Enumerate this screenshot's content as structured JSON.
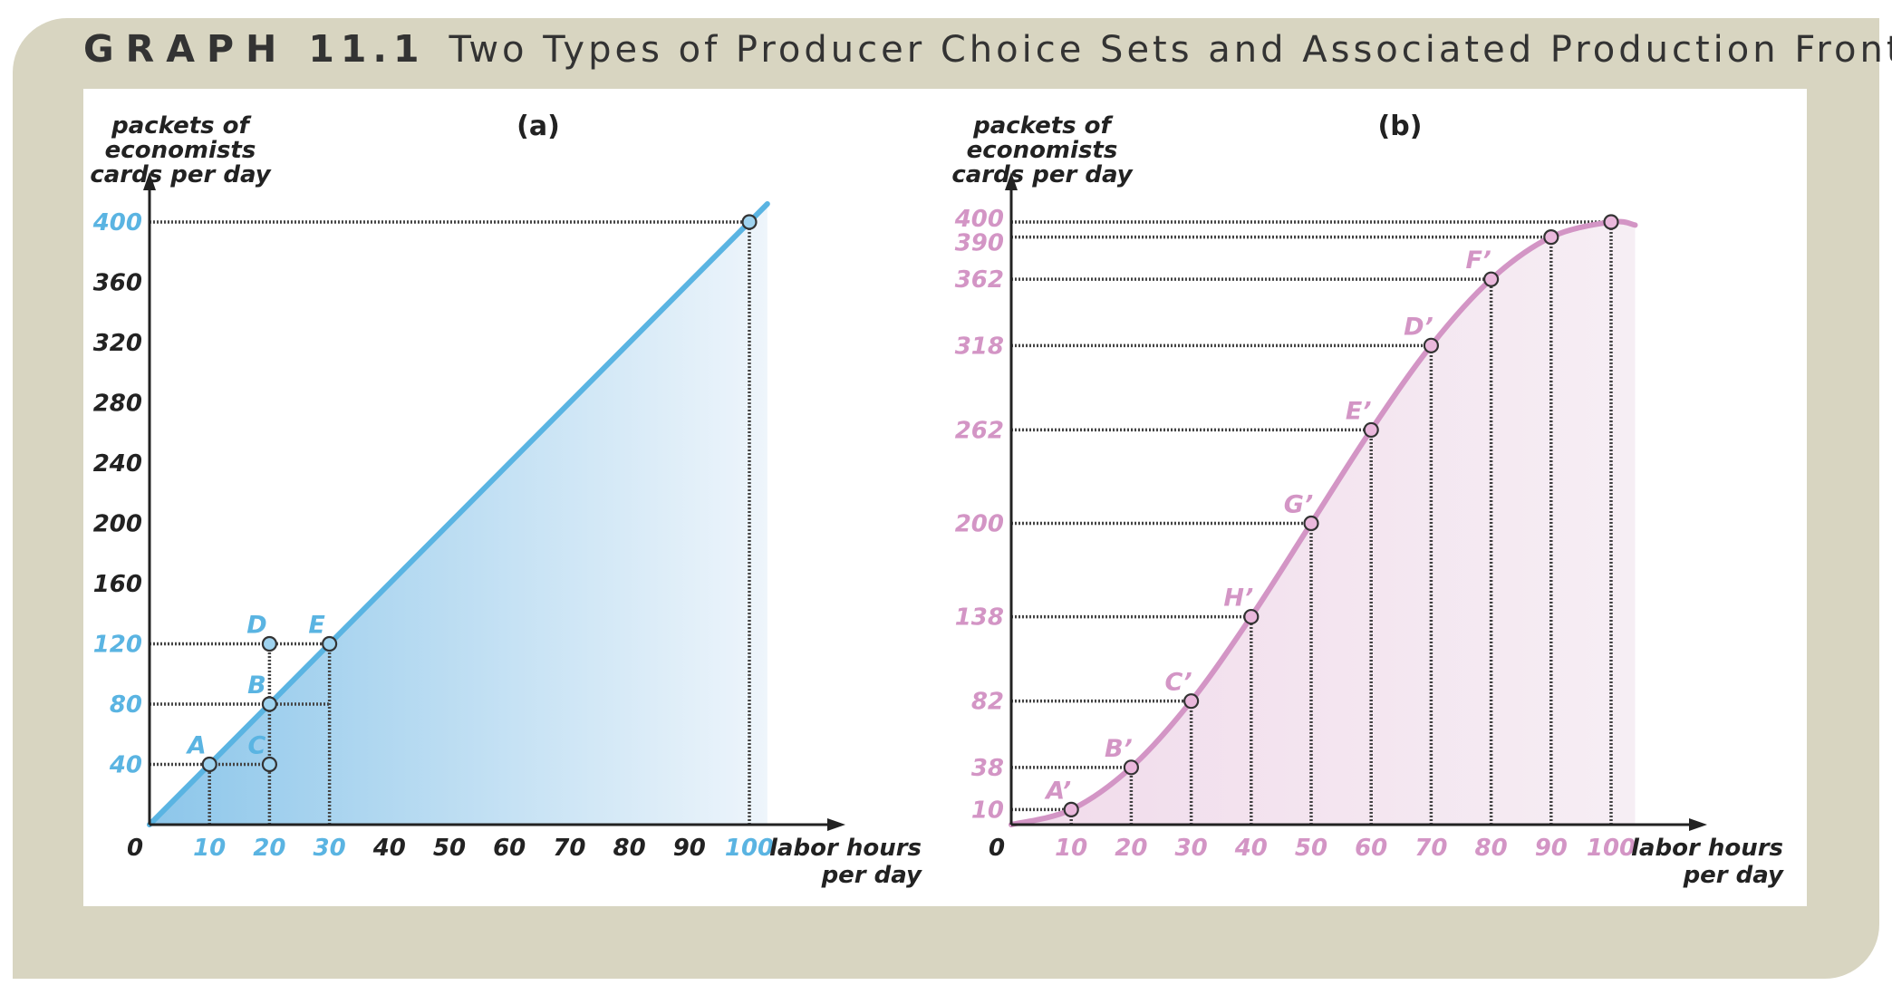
{
  "title": {
    "graph_label": "GRAPH",
    "number": "11.1",
    "text": "Two Types of Producer Choice Sets and Associated Production Frontiers"
  },
  "colors": {
    "blue": "#5ab4e2",
    "pink": "#d395c5",
    "dark": "#222222",
    "frame": "#d8d5c1"
  },
  "chart_data": [
    {
      "type": "area",
      "panel_label": "(a)",
      "ylabel": "packets of economists cards per day",
      "ylabel_lines": [
        "packets of",
        "economists",
        "cards per day"
      ],
      "xlabel": "labor hours per day",
      "xlabel_lines": [
        "labor hours",
        "per day"
      ],
      "xlim": [
        0,
        105
      ],
      "ylim": [
        0,
        420
      ],
      "origin_label": "0",
      "x_ticks": [
        {
          "value": 10,
          "label": "10",
          "highlight": true
        },
        {
          "value": 20,
          "label": "20",
          "highlight": true
        },
        {
          "value": 30,
          "label": "30",
          "highlight": true
        },
        {
          "value": 40,
          "label": "40",
          "highlight": false
        },
        {
          "value": 50,
          "label": "50",
          "highlight": false
        },
        {
          "value": 60,
          "label": "60",
          "highlight": false
        },
        {
          "value": 70,
          "label": "70",
          "highlight": false
        },
        {
          "value": 80,
          "label": "80",
          "highlight": false
        },
        {
          "value": 90,
          "label": "90",
          "highlight": false
        },
        {
          "value": 100,
          "label": "100",
          "highlight": true
        }
      ],
      "y_ticks": [
        {
          "value": 40,
          "label": "40",
          "highlight": true
        },
        {
          "value": 80,
          "label": "80",
          "highlight": true
        },
        {
          "value": 120,
          "label": "120",
          "highlight": true
        },
        {
          "value": 160,
          "label": "160",
          "highlight": false
        },
        {
          "value": 200,
          "label": "200",
          "highlight": false
        },
        {
          "value": 240,
          "label": "240",
          "highlight": false
        },
        {
          "value": 280,
          "label": "280",
          "highlight": false
        },
        {
          "value": 320,
          "label": "320",
          "highlight": false
        },
        {
          "value": 360,
          "label": "360",
          "highlight": false
        },
        {
          "value": 400,
          "label": "400",
          "highlight": true
        }
      ],
      "frontier": {
        "x": [
          0,
          100,
          103
        ],
        "y": [
          0,
          400,
          412
        ]
      },
      "points": [
        {
          "label": "A",
          "x": 10,
          "y": 40,
          "label_pos": "left"
        },
        {
          "label": "B",
          "x": 20,
          "y": 80,
          "label_pos": "left"
        },
        {
          "label": "C",
          "x": 20,
          "y": 40,
          "label_pos": "left"
        },
        {
          "label": "D",
          "x": 20,
          "y": 120,
          "label_pos": "left"
        },
        {
          "label": "E",
          "x": 30,
          "y": 120,
          "label_pos": "left"
        },
        {
          "label": "",
          "x": 100,
          "y": 400,
          "label_pos": "none"
        }
      ],
      "guides": [
        {
          "from": [
            0,
            40
          ],
          "to": [
            20,
            40
          ]
        },
        {
          "from": [
            10,
            0
          ],
          "to": [
            10,
            40
          ]
        },
        {
          "from": [
            0,
            80
          ],
          "to": [
            30,
            80
          ]
        },
        {
          "from": [
            0,
            120
          ],
          "to": [
            30,
            120
          ]
        },
        {
          "from": [
            20,
            0
          ],
          "to": [
            20,
            120
          ]
        },
        {
          "from": [
            30,
            0
          ],
          "to": [
            30,
            120
          ]
        },
        {
          "from": [
            0,
            400
          ],
          "to": [
            100,
            400
          ]
        },
        {
          "from": [
            100,
            0
          ],
          "to": [
            100,
            400
          ]
        }
      ]
    },
    {
      "type": "area",
      "panel_label": "(b)",
      "ylabel": "packets of economists cards per day",
      "ylabel_lines": [
        "packets of",
        "economists",
        "cards per day"
      ],
      "xlabel": "labor hours per day",
      "xlabel_lines": [
        "labor hours",
        "per day"
      ],
      "xlim": [
        0,
        105
      ],
      "ylim": [
        0,
        412
      ],
      "origin_label": "0",
      "x_ticks": [
        {
          "value": 10,
          "label": "10",
          "highlight": true
        },
        {
          "value": 20,
          "label": "20",
          "highlight": true
        },
        {
          "value": 30,
          "label": "30",
          "highlight": true
        },
        {
          "value": 40,
          "label": "40",
          "highlight": true
        },
        {
          "value": 50,
          "label": "50",
          "highlight": true
        },
        {
          "value": 60,
          "label": "60",
          "highlight": true
        },
        {
          "value": 70,
          "label": "70",
          "highlight": true
        },
        {
          "value": 80,
          "label": "80",
          "highlight": true
        },
        {
          "value": 90,
          "label": "90",
          "highlight": true
        },
        {
          "value": 100,
          "label": "100",
          "highlight": true
        }
      ],
      "y_ticks": [
        {
          "value": 10,
          "label": "10",
          "highlight": true
        },
        {
          "value": 38,
          "label": "38",
          "highlight": true
        },
        {
          "value": 82,
          "label": "82",
          "highlight": true
        },
        {
          "value": 138,
          "label": "138",
          "highlight": true
        },
        {
          "value": 200,
          "label": "200",
          "highlight": true
        },
        {
          "value": 262,
          "label": "262",
          "highlight": true
        },
        {
          "value": 318,
          "label": "318",
          "highlight": true
        },
        {
          "value": 362,
          "label": "362",
          "highlight": true
        },
        {
          "value": 390,
          "label": "390",
          "highlight": true
        },
        {
          "value": 400,
          "label": "400",
          "highlight": true
        }
      ],
      "frontier": {
        "x": [
          0,
          10,
          20,
          30,
          40,
          50,
          60,
          70,
          80,
          90,
          100,
          104
        ],
        "y": [
          0,
          10,
          38,
          82,
          138,
          200,
          262,
          318,
          362,
          390,
          400,
          398
        ]
      },
      "points": [
        {
          "label": "A’",
          "x": 10,
          "y": 10,
          "label_pos": "left"
        },
        {
          "label": "B’",
          "x": 20,
          "y": 38,
          "label_pos": "left"
        },
        {
          "label": "C’",
          "x": 30,
          "y": 82,
          "label_pos": "left"
        },
        {
          "label": "H’",
          "x": 40,
          "y": 138,
          "label_pos": "left"
        },
        {
          "label": "G’",
          "x": 50,
          "y": 200,
          "label_pos": "left"
        },
        {
          "label": "E’",
          "x": 60,
          "y": 262,
          "label_pos": "left"
        },
        {
          "label": "D’",
          "x": 70,
          "y": 318,
          "label_pos": "left"
        },
        {
          "label": "F’",
          "x": 80,
          "y": 362,
          "label_pos": "left"
        },
        {
          "label": "",
          "x": 90,
          "y": 390,
          "label_pos": "none"
        },
        {
          "label": "",
          "x": 100,
          "y": 400,
          "label_pos": "none"
        }
      ],
      "guides": [
        {
          "from": [
            0,
            10
          ],
          "to": [
            10,
            10
          ]
        },
        {
          "from": [
            10,
            0
          ],
          "to": [
            10,
            10
          ]
        },
        {
          "from": [
            0,
            38
          ],
          "to": [
            20,
            38
          ]
        },
        {
          "from": [
            20,
            0
          ],
          "to": [
            20,
            38
          ]
        },
        {
          "from": [
            0,
            82
          ],
          "to": [
            30,
            82
          ]
        },
        {
          "from": [
            30,
            0
          ],
          "to": [
            30,
            82
          ]
        },
        {
          "from": [
            0,
            138
          ],
          "to": [
            40,
            138
          ]
        },
        {
          "from": [
            40,
            0
          ],
          "to": [
            40,
            138
          ]
        },
        {
          "from": [
            0,
            200
          ],
          "to": [
            50,
            200
          ]
        },
        {
          "from": [
            50,
            0
          ],
          "to": [
            50,
            200
          ]
        },
        {
          "from": [
            0,
            262
          ],
          "to": [
            60,
            262
          ]
        },
        {
          "from": [
            60,
            0
          ],
          "to": [
            60,
            262
          ]
        },
        {
          "from": [
            0,
            318
          ],
          "to": [
            70,
            318
          ]
        },
        {
          "from": [
            70,
            0
          ],
          "to": [
            70,
            318
          ]
        },
        {
          "from": [
            0,
            362
          ],
          "to": [
            80,
            362
          ]
        },
        {
          "from": [
            80,
            0
          ],
          "to": [
            80,
            362
          ]
        },
        {
          "from": [
            0,
            390
          ],
          "to": [
            90,
            390
          ]
        },
        {
          "from": [
            90,
            0
          ],
          "to": [
            90,
            390
          ]
        },
        {
          "from": [
            0,
            400
          ],
          "to": [
            100,
            400
          ]
        },
        {
          "from": [
            100,
            0
          ],
          "to": [
            100,
            400
          ]
        }
      ]
    }
  ]
}
